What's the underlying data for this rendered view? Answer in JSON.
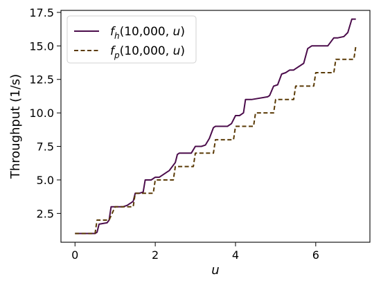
{
  "chart_data": {
    "type": "line",
    "title": "",
    "xlabel": "u",
    "ylabel": "Throughput (1/s)",
    "xlim": [
      -0.35,
      7.35
    ],
    "ylim": [
      0.35,
      17.65
    ],
    "xticks": [
      0,
      2,
      4,
      6
    ],
    "xtick_labels": [
      "0",
      "2",
      "4",
      "6"
    ],
    "yticks": [
      2.5,
      5.0,
      7.5,
      10.0,
      12.5,
      15.0,
      17.5
    ],
    "ytick_labels": [
      "2.5",
      "5.0",
      "7.5",
      "10.0",
      "12.5",
      "15.0",
      "17.5"
    ],
    "grid": false,
    "legend_position": "top-left",
    "series": [
      {
        "name": "f_h(10,000, u)",
        "legend": {
          "func": "f",
          "sub": "h",
          "args": "(10,000, ",
          "var": "u",
          "close": ")"
        },
        "color": "#4b0c4b",
        "dash": "solid",
        "x": [
          0,
          0.5,
          0.55,
          0.6,
          0.8,
          0.85,
          0.9,
          1.2,
          1.3,
          1.45,
          1.5,
          1.6,
          1.7,
          1.75,
          1.9,
          2.0,
          2.1,
          2.3,
          2.35,
          2.5,
          2.55,
          2.6,
          2.9,
          3.0,
          3.15,
          3.25,
          3.35,
          3.45,
          3.5,
          3.8,
          3.9,
          4.0,
          4.1,
          4.2,
          4.25,
          4.4,
          4.8,
          4.85,
          4.95,
          5.05,
          5.15,
          5.25,
          5.35,
          5.45,
          5.5,
          5.7,
          5.8,
          5.9,
          6.0,
          6.3,
          6.45,
          6.55,
          6.7,
          6.8,
          6.9,
          7.0
        ],
        "y": [
          1.0,
          1.0,
          1.1,
          1.7,
          1.8,
          2.0,
          3.0,
          3.0,
          3.1,
          3.4,
          4.0,
          4.0,
          4.1,
          5.0,
          5.0,
          5.2,
          5.2,
          5.6,
          5.7,
          6.3,
          6.9,
          7.0,
          7.0,
          7.5,
          7.5,
          7.6,
          8.1,
          8.9,
          9.0,
          9.0,
          9.2,
          9.8,
          9.8,
          10.0,
          11.0,
          11.0,
          11.2,
          11.3,
          12.0,
          12.1,
          12.9,
          13.0,
          13.2,
          13.2,
          13.3,
          13.7,
          14.8,
          15.0,
          15.0,
          15.0,
          15.6,
          15.6,
          15.7,
          16.0,
          17.0,
          17.0
        ]
      },
      {
        "name": "f_p(10,000, u)",
        "legend": {
          "func": "f",
          "sub": "p",
          "args": "(10,000, ",
          "var": "u",
          "close": ")"
        },
        "color": "#5a3a06",
        "dash": "dashed",
        "x": [
          0,
          0.5,
          0.55,
          0.8,
          0.85,
          1.0,
          1.05,
          1.45,
          1.5,
          1.95,
          2.0,
          2.45,
          2.5,
          2.95,
          3.0,
          3.45,
          3.5,
          3.95,
          4.0,
          4.45,
          4.5,
          4.95,
          5.0,
          5.45,
          5.5,
          5.95,
          6.0,
          6.45,
          6.5,
          6.95,
          7.0
        ],
        "y": [
          1.0,
          1.0,
          2.0,
          2.0,
          2.0,
          3.0,
          3.0,
          3.0,
          4.0,
          4.0,
          5.0,
          5.0,
          6.0,
          6.0,
          7.0,
          7.0,
          8.0,
          8.0,
          9.0,
          9.0,
          10.0,
          10.0,
          11.0,
          11.0,
          12.0,
          12.0,
          13.0,
          13.0,
          14.0,
          14.0,
          15.0
        ]
      }
    ]
  }
}
